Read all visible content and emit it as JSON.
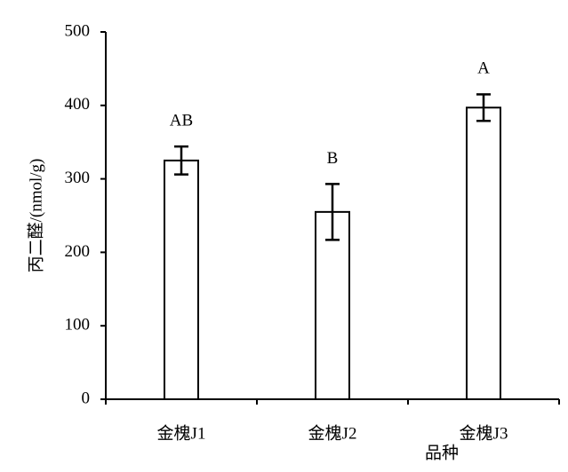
{
  "chart_data": {
    "type": "bar",
    "categories": [
      "金槐J1",
      "金槐J2",
      "金槐J3"
    ],
    "values": [
      325,
      255,
      397
    ],
    "errors": [
      19,
      38,
      18
    ],
    "significance_labels": [
      "AB",
      "B",
      "A"
    ],
    "color": "#ffffff",
    "xlabel": "品种",
    "ylabel": "丙二醛/(nmol/g)",
    "ylim": [
      0,
      500
    ],
    "yticks": [
      0,
      100,
      200,
      300,
      400,
      500
    ],
    "grid": false
  }
}
